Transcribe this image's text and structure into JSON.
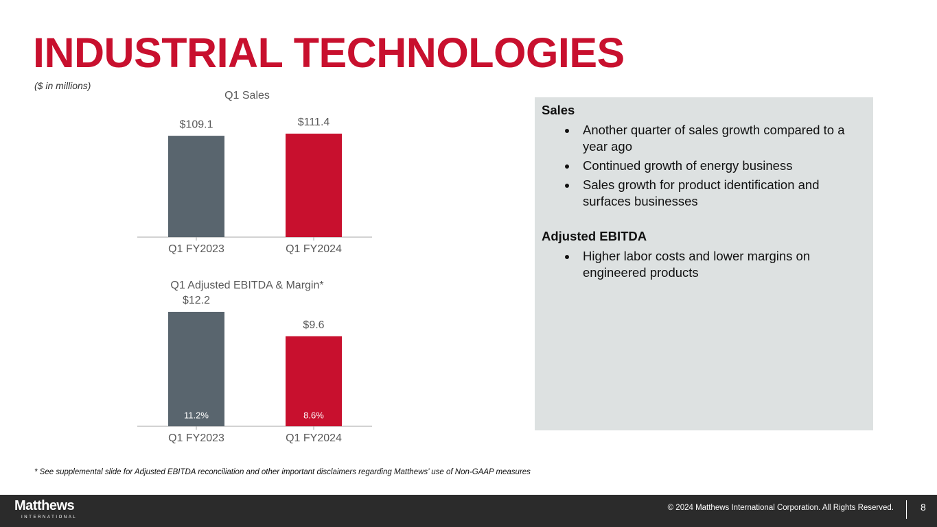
{
  "title": "INDUSTRIAL TECHNOLOGIES",
  "subtitle": "($ in millions)",
  "chart_data": [
    {
      "type": "bar",
      "title": "Q1 Sales",
      "categories": [
        "Q1 FY2023",
        "Q1 FY2024"
      ],
      "values": [
        109.1,
        111.4
      ],
      "value_labels": [
        "$109.1",
        "$111.4"
      ],
      "colors": [
        "#59656e",
        "#c8102e"
      ]
    },
    {
      "type": "bar",
      "title": "Q1 Adjusted EBITDA & Margin*",
      "categories": [
        "Q1 FY2023",
        "Q1 FY2024"
      ],
      "values": [
        12.2,
        9.6
      ],
      "value_labels": [
        "$12.2",
        "$9.6"
      ],
      "margin_values": [
        11.2,
        8.6
      ],
      "margin_labels": [
        "11.2%",
        "8.6%"
      ],
      "colors": [
        "#59656e",
        "#c8102e"
      ]
    }
  ],
  "panel": {
    "sections": [
      {
        "heading": "Sales",
        "bullets": [
          "Another quarter of sales growth compared to a year ago",
          "Continued growth of energy business",
          "Sales growth for product identification and surfaces businesses"
        ]
      },
      {
        "heading": "Adjusted EBITDA",
        "bullets": [
          "Higher labor costs and lower margins on engineered products"
        ]
      }
    ]
  },
  "footnote": "* See supplemental slide for Adjusted EBITDA reconciliation and other important disclaimers regarding Matthews’ use of Non-GAAP measures",
  "footer": {
    "logo": "Matthews",
    "logo_sub": "INTERNATIONAL",
    "copyright": "© 2024 Matthews International Corporation. All Rights Reserved.",
    "page": "8"
  }
}
